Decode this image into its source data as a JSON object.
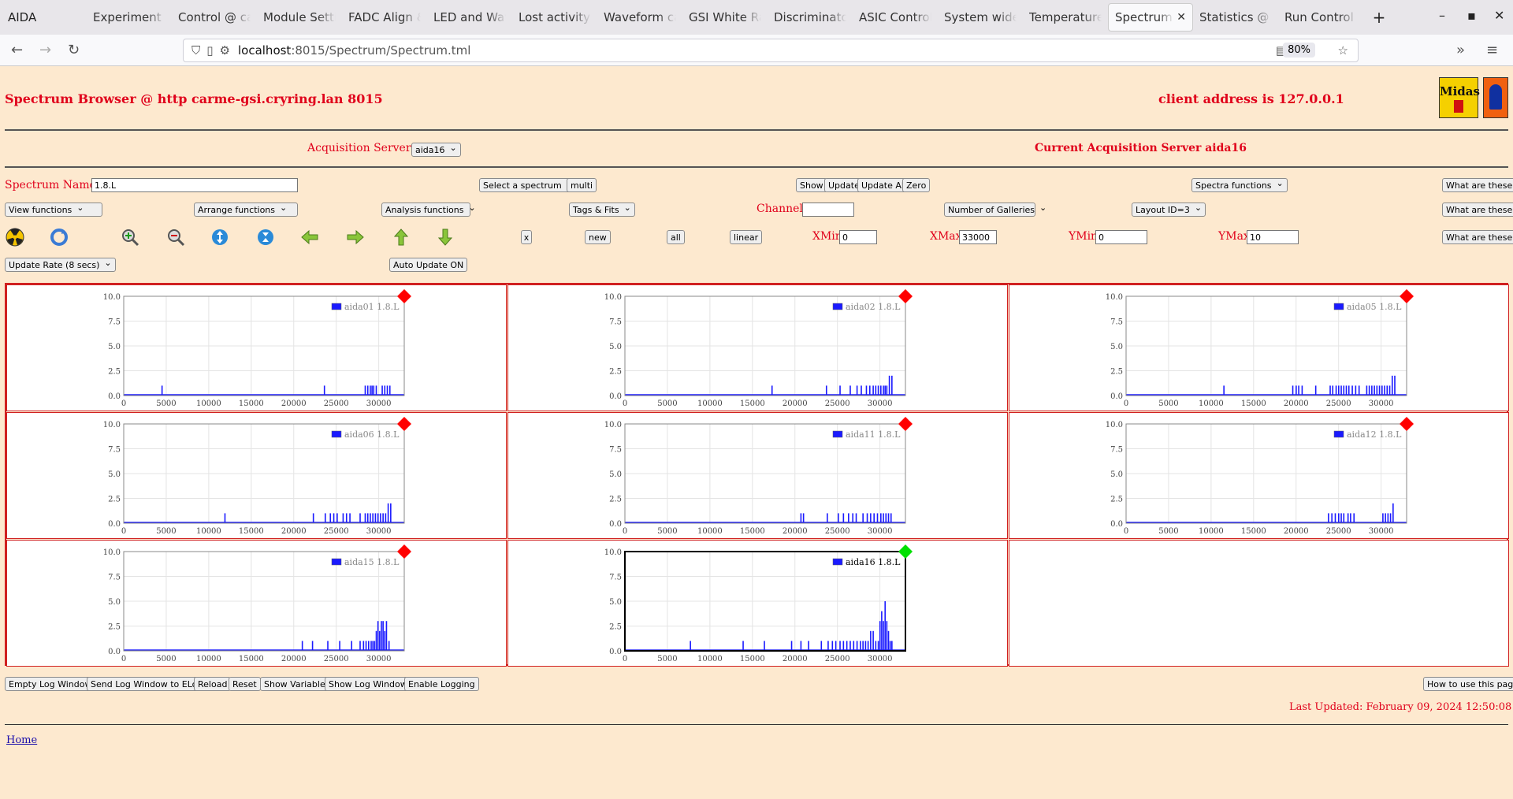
{
  "browser": {
    "app_title": "AIDA",
    "tabs": [
      {
        "label": "Experiment C"
      },
      {
        "label": "Control @ ca"
      },
      {
        "label": "Module Settir"
      },
      {
        "label": "FADC Align &"
      },
      {
        "label": "LED and Wav"
      },
      {
        "label": "Lost activity r"
      },
      {
        "label": "Waveform ca"
      },
      {
        "label": "GSI White Ra"
      },
      {
        "label": "Discriminator"
      },
      {
        "label": "ASIC Control"
      },
      {
        "label": "System wide"
      },
      {
        "label": "Temperature"
      },
      {
        "label": "Spectrum B"
      },
      {
        "label": "Statistics @ c"
      },
      {
        "label": "Run Control @"
      }
    ],
    "active_tab_index": 12,
    "url_host": "localhost",
    "url_path": ":8015/Spectrum/Spectrum.tml",
    "zoom": "80%"
  },
  "header": {
    "title": "Spectrum Browser @ http carme-gsi.cryring.lan 8015",
    "client_address": "client address is 127.0.0.1"
  },
  "acquisition": {
    "label": "Acquisition Servers",
    "selected": "aida16",
    "current_label": "Current Acquisition Server aida16"
  },
  "row1": {
    "spectrum_name_label": "Spectrum Name:",
    "spectrum_name_value": "1.8.L",
    "select_spectrum": "Select a spectrum",
    "multi": "multi",
    "show": "Show",
    "update": "Update",
    "update_all": "Update All",
    "zero": "Zero",
    "spectra_functions": "Spectra functions",
    "help": "What are these?"
  },
  "row2": {
    "view_functions": "View functions",
    "arrange_functions": "Arrange functions",
    "analysis_functions": "Analysis functions",
    "tags_fits": "Tags & Fits",
    "channel_label": "Channel:",
    "channel_value": "",
    "number_of_galleries": "Number of Galleries",
    "layout": "Layout ID=3",
    "help": "What are these?"
  },
  "row3": {
    "x": "x",
    "new": "new",
    "all": "all",
    "linear": "linear",
    "xmin_label": "XMin",
    "xmin_value": "0",
    "xmax_label": "XMax",
    "xmax_value": "33000",
    "ymin_label": "YMin",
    "ymin_value": "0",
    "ymax_label": "YMax",
    "ymax_value": "10",
    "help": "What are these?",
    "icons": [
      "radiation-icon",
      "refresh-icon",
      "zoom-in-icon",
      "zoom-out-icon",
      "expand-vertical-icon",
      "compress-vertical-icon",
      "arrow-left-icon",
      "arrow-right-icon",
      "arrow-up-icon",
      "arrow-down-icon"
    ]
  },
  "row4": {
    "update_rate": "Update Rate (8 secs)",
    "auto_update": "Auto Update ON"
  },
  "chart_data": [
    {
      "type": "bar",
      "legend": "aida01 1.8.L",
      "status": "red",
      "xlim": [
        0,
        33000
      ],
      "ylim": [
        0,
        10
      ],
      "xticks": [
        "0",
        "5000",
        "10000",
        "15000",
        "20000",
        "25000",
        "30000"
      ],
      "yticks": [
        "0.0",
        "2.5",
        "5.0",
        "7.5",
        "10.0"
      ],
      "x": [
        4500,
        23600,
        28400,
        28700,
        29000,
        29200,
        29400,
        29700,
        30400,
        30700,
        31000,
        31300
      ],
      "values": [
        1,
        1,
        1,
        1,
        1,
        1,
        1,
        1,
        1,
        1,
        1,
        1
      ]
    },
    {
      "type": "bar",
      "legend": "aida02 1.8.L",
      "status": "red",
      "xlim": [
        0,
        33000
      ],
      "ylim": [
        0,
        10
      ],
      "xticks": [
        "0",
        "5000",
        "10000",
        "15000",
        "20000",
        "25000",
        "30000"
      ],
      "yticks": [
        "0.0",
        "2.5",
        "5.0",
        "7.5",
        "10.0"
      ],
      "x": [
        17300,
        23700,
        25300,
        26500,
        27300,
        27800,
        28400,
        28800,
        29200,
        29500,
        29800,
        30100,
        30400,
        30600,
        30800,
        31100,
        31400
      ],
      "values": [
        1,
        1,
        1,
        1,
        1,
        1,
        1,
        1,
        1,
        1,
        1,
        1,
        1,
        1,
        1,
        2,
        2
      ]
    },
    {
      "type": "bar",
      "legend": "aida05 1.8.L",
      "status": "red",
      "xlim": [
        0,
        33000
      ],
      "ylim": [
        0,
        10
      ],
      "xticks": [
        "0",
        "5000",
        "10000",
        "15000",
        "20000",
        "25000",
        "30000"
      ],
      "yticks": [
        "0.0",
        "2.5",
        "5.0",
        "7.5",
        "10.0"
      ],
      "x": [
        11500,
        19600,
        20000,
        20300,
        20700,
        22300,
        24000,
        24300,
        24700,
        25000,
        25300,
        25600,
        25900,
        26200,
        26600,
        27000,
        27400,
        28300,
        28600,
        28900,
        29200,
        29500,
        29800,
        30100,
        30400,
        30700,
        31000,
        31300,
        31600
      ],
      "values": [
        1,
        1,
        1,
        1,
        1,
        1,
        1,
        1,
        1,
        1,
        1,
        1,
        1,
        1,
        1,
        1,
        1,
        1,
        1,
        1,
        1,
        1,
        1,
        1,
        1,
        1,
        1,
        2,
        2
      ]
    },
    {
      "type": "bar",
      "legend": "aida06 1.8.L",
      "status": "red",
      "xlim": [
        0,
        33000
      ],
      "ylim": [
        0,
        10
      ],
      "xticks": [
        "0",
        "5000",
        "10000",
        "15000",
        "20000",
        "25000",
        "30000"
      ],
      "yticks": [
        "0.0",
        "2.5",
        "5.0",
        "7.5",
        "10.0"
      ],
      "x": [
        11900,
        22300,
        23700,
        24300,
        24700,
        25100,
        25800,
        26200,
        26600,
        27800,
        28400,
        28700,
        29000,
        29300,
        29600,
        29900,
        30200,
        30500,
        30800,
        31100,
        31400
      ],
      "values": [
        1,
        1,
        1,
        1,
        1,
        1,
        1,
        1,
        1,
        1,
        1,
        1,
        1,
        1,
        1,
        1,
        1,
        1,
        1,
        2,
        2
      ]
    },
    {
      "type": "bar",
      "legend": "aida11 1.8.L",
      "status": "red",
      "xlim": [
        0,
        33000
      ],
      "ylim": [
        0,
        10
      ],
      "xticks": [
        "0",
        "5000",
        "10000",
        "15000",
        "20000",
        "25000",
        "30000"
      ],
      "yticks": [
        "0.0",
        "2.5",
        "5.0",
        "7.5",
        "10.0"
      ],
      "x": [
        20700,
        21000,
        23800,
        25100,
        25700,
        26300,
        26800,
        27200,
        28000,
        28500,
        28900,
        29300,
        29700,
        30100,
        30400,
        30700,
        31000,
        31300
      ],
      "values": [
        1,
        1,
        1,
        1,
        1,
        1,
        1,
        1,
        1,
        1,
        1,
        1,
        1,
        1,
        1,
        1,
        1,
        1
      ]
    },
    {
      "type": "bar",
      "legend": "aida12 1.8.L",
      "status": "red",
      "xlim": [
        0,
        33000
      ],
      "ylim": [
        0,
        10
      ],
      "xticks": [
        "0",
        "5000",
        "10000",
        "15000",
        "20000",
        "25000",
        "30000"
      ],
      "yticks": [
        "0.0",
        "2.5",
        "5.0",
        "7.5",
        "10.0"
      ],
      "x": [
        23800,
        24200,
        24600,
        25000,
        25300,
        25600,
        26100,
        26400,
        26800,
        30200,
        30500,
        30800,
        31100,
        31400
      ],
      "values": [
        1,
        1,
        1,
        1,
        1,
        1,
        1,
        1,
        1,
        1,
        1,
        1,
        1,
        2
      ]
    },
    {
      "type": "bar",
      "legend": "aida15 1.8.L",
      "status": "red",
      "xlim": [
        0,
        33000
      ],
      "ylim": [
        0,
        10
      ],
      "xticks": [
        "0",
        "5000",
        "10000",
        "15000",
        "20000",
        "25000",
        "30000"
      ],
      "yticks": [
        "0.0",
        "2.5",
        "5.0",
        "7.5",
        "10.0"
      ],
      "x": [
        21000,
        22200,
        24000,
        25400,
        26800,
        27800,
        28200,
        28500,
        28800,
        29100,
        29300,
        29500,
        29700,
        29900,
        30100,
        30300,
        30500,
        30700,
        30900,
        31200
      ],
      "values": [
        1,
        1,
        1,
        1,
        1,
        1,
        1,
        1,
        1,
        1,
        1,
        1,
        2,
        3,
        2,
        3,
        3,
        2,
        3,
        1
      ]
    },
    {
      "type": "bar",
      "legend": "aida16 1.8.L",
      "status": "green",
      "xlim": [
        0,
        33000
      ],
      "ylim": [
        0,
        10
      ],
      "xticks": [
        "0",
        "5000",
        "10000",
        "15000",
        "20000",
        "25000",
        "30000"
      ],
      "yticks": [
        "0.0",
        "2.5",
        "5.0",
        "7.5",
        "10.0"
      ],
      "x": [
        7700,
        13900,
        16400,
        19600,
        20700,
        21600,
        23100,
        23900,
        24400,
        24800,
        25300,
        25700,
        26100,
        26500,
        26900,
        27300,
        27700,
        28000,
        28300,
        28600,
        28900,
        29200,
        29500,
        29800,
        30000,
        30200,
        30400,
        30600,
        30800,
        31000,
        31200,
        31400
      ],
      "values": [
        1,
        1,
        1,
        1,
        1,
        1,
        1,
        1,
        1,
        1,
        1,
        1,
        1,
        1,
        1,
        1,
        1,
        1,
        1,
        1,
        2,
        2,
        1,
        1,
        3,
        4,
        3,
        5,
        3,
        2,
        1,
        1
      ]
    }
  ],
  "footer": {
    "buttons": [
      "Empty Log Window",
      "Send Log Window to ELog",
      "Reload",
      "Reset",
      "Show Variables",
      "Show Log Window",
      "Enable Logging"
    ],
    "how_to": "How to use this page",
    "last_updated": "Last Updated: February 09, 2024 12:50:08",
    "home": "Home"
  },
  "logos": {
    "midas_text": "Midas"
  },
  "colors": {
    "page_bg": "#fde9cf",
    "accent_red": "#e0001b",
    "bar_blue": "#1a1aff",
    "status_red": "#ff0000",
    "status_green": "#00e000"
  }
}
